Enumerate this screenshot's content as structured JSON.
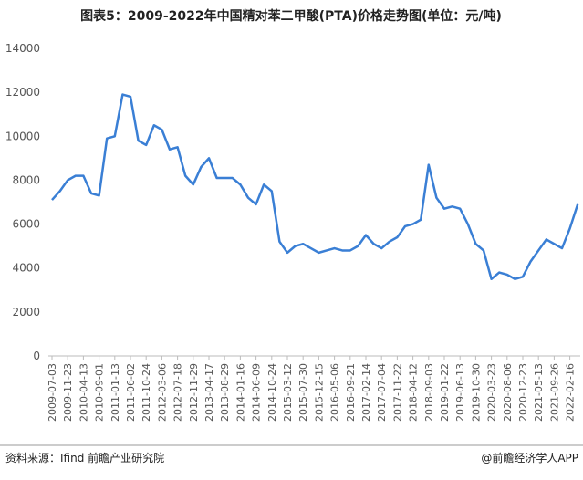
{
  "chart_data": {
    "type": "line",
    "title": "图表5：2009-2022年中国精对苯二甲酸(PTA)价格走势图(单位：元/吨)",
    "source": "资料来源：Ifind 前瞻产业研究院",
    "brand": "@前瞻经济学人APP",
    "categories": [
      "2009-07-03",
      null,
      "2009-11-23",
      null,
      "2010-04-13",
      null,
      "2010-09-01",
      null,
      "2011-01-13",
      null,
      "2011-06-02",
      null,
      "2011-10-24",
      null,
      "2012-03-06",
      null,
      "2012-07-18",
      null,
      "2012-11-29",
      null,
      "2013-04-17",
      null,
      "2013-08-29",
      null,
      "2014-01-16",
      null,
      "2014-06-09",
      null,
      "2014-10-24",
      null,
      "2015-03-12",
      null,
      "2015-07-30",
      null,
      "2015-12-15",
      null,
      "2016-05-06",
      null,
      "2016-09-21",
      null,
      "2017-02-14",
      null,
      "2017-07-04",
      null,
      "2017-11-22",
      null,
      "2018-04-12",
      null,
      "2018-09-03",
      null,
      "2019-01-22",
      null,
      "2019-06-13",
      null,
      "2019-10-30",
      null,
      "2020-03-23",
      null,
      "2020-08-06",
      null,
      "2020-12-23",
      null,
      "2021-05-13",
      null,
      "2021-09-26",
      null,
      "2022-02-16",
      null
    ],
    "series": [
      {
        "name": "PTA",
        "color": "#3a7fd5",
        "values": [
          7100,
          7500,
          8000,
          8200,
          8200,
          7400,
          7300,
          9900,
          10000,
          11900,
          11800,
          9800,
          9600,
          10500,
          10300,
          9400,
          9500,
          8200,
          7800,
          8600,
          9000,
          8100,
          8100,
          8100,
          7800,
          7200,
          6900,
          7800,
          7500,
          5200,
          4700,
          5000,
          5100,
          4900,
          4700,
          4800,
          4900,
          4800,
          4800,
          5000,
          5500,
          5100,
          4900,
          5200,
          5400,
          5900,
          6000,
          6200,
          8700,
          7200,
          6700,
          6800,
          6700,
          6000,
          5100,
          4800,
          3500,
          3800,
          3700,
          3500,
          3600,
          4300,
          4800,
          5300,
          5100,
          4900,
          5800,
          6900
        ]
      }
    ],
    "ylim": [
      0,
      14000
    ],
    "yticks": [
      0,
      2000,
      4000,
      6000,
      8000,
      10000,
      12000,
      14000
    ],
    "grid": false
  }
}
